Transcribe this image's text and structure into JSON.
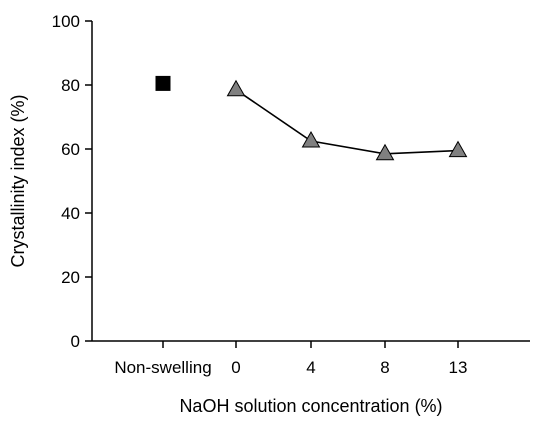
{
  "chart_data": {
    "type": "scatter",
    "title": "",
    "xlabel": "NaOH solution concentration (%)",
    "ylabel": "Crystallinity index (%)",
    "ylim": [
      0,
      100
    ],
    "yticks": [
      0,
      20,
      40,
      60,
      80,
      100
    ],
    "grid": false,
    "legend": "none",
    "categories": [
      "Non-swelling",
      "0",
      "4",
      "8",
      "13"
    ],
    "series": [
      {
        "marker": "square",
        "color": "#000000",
        "connected": false,
        "points": [
          {
            "x": "Non-swelling",
            "y": 80.5
          }
        ]
      },
      {
        "marker": "triangle",
        "color": "#808080",
        "connected": true,
        "points": [
          {
            "x": "0",
            "y": 78.5
          },
          {
            "x": "4",
            "y": 62.5
          },
          {
            "x": "8",
            "y": 58.5
          },
          {
            "x": "13",
            "y": 59.5
          }
        ]
      }
    ]
  }
}
